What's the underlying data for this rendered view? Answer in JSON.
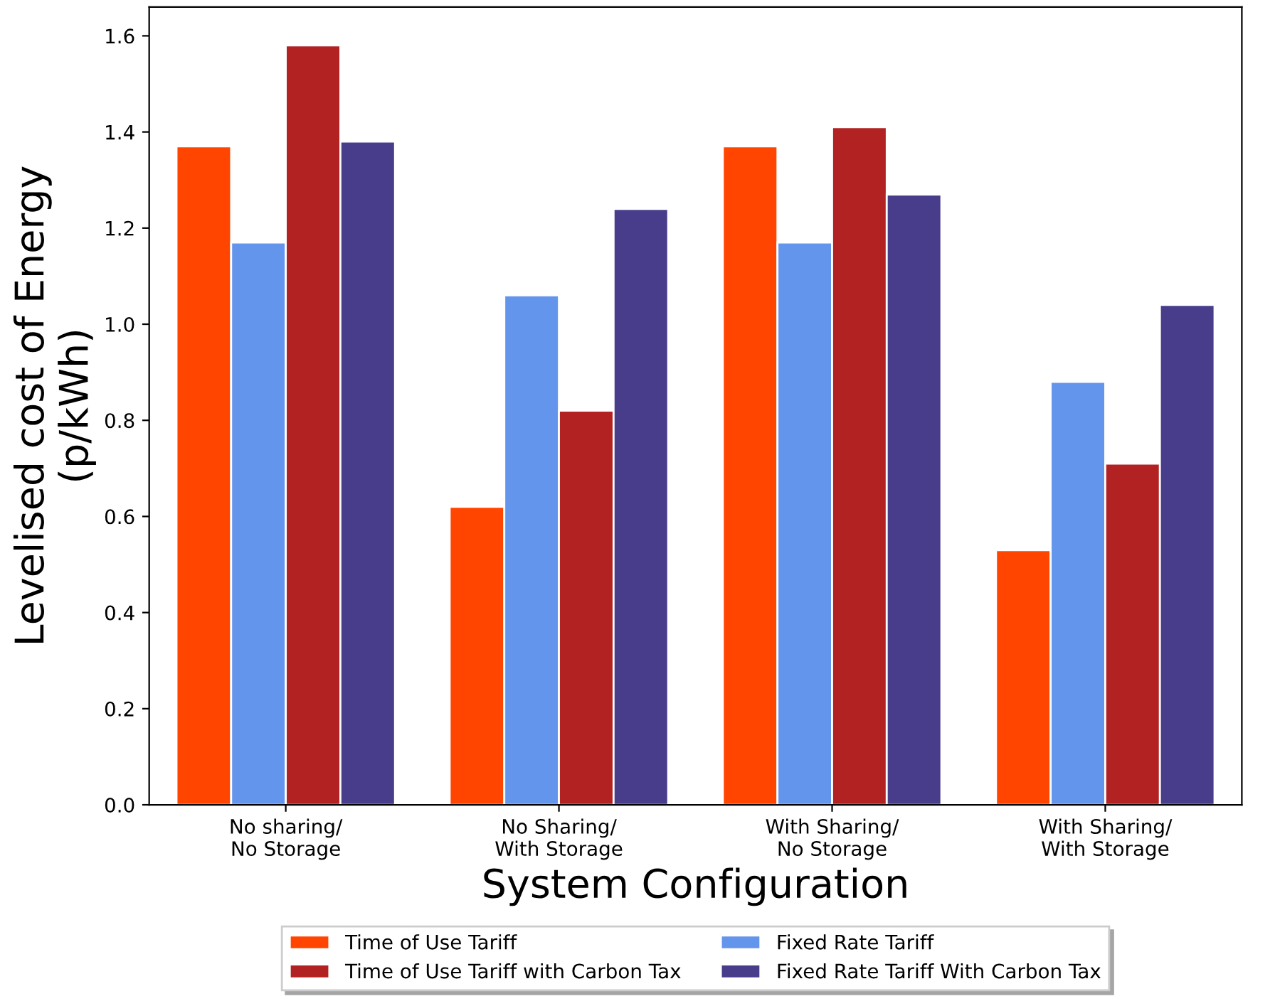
{
  "chart_data": {
    "type": "bar",
    "xlabel": "System Configuration",
    "ylabel": "Levelised cost of Energy\n(p/kWh)",
    "categories": [
      "No sharing/\nNo Storage",
      "No Sharing/\nWith Storage",
      "With Sharing/\nNo Storage",
      "With Sharing/\nWith Storage"
    ],
    "series": [
      {
        "name": "Time of Use Tariff",
        "color": "#ff4500",
        "values": [
          1.37,
          0.62,
          1.37,
          0.53
        ]
      },
      {
        "name": "Fixed Rate Tariff",
        "color": "#6495ed",
        "values": [
          1.17,
          1.06,
          1.17,
          0.88
        ]
      },
      {
        "name": "Time of Use Tariff with Carbon Tax",
        "color": "#b22222",
        "values": [
          1.58,
          0.82,
          1.41,
          0.71
        ]
      },
      {
        "name": "Fixed Rate Tariff With Carbon Tax",
        "color": "#483d8b",
        "values": [
          1.38,
          1.24,
          1.27,
          1.04
        ]
      }
    ],
    "ylim": [
      0,
      1.66
    ],
    "yticks": [
      {
        "value": 0,
        "label": "0.0"
      },
      0.2,
      0.4,
      0.6,
      0.8,
      {
        "value": 1,
        "label": "1.0"
      },
      1.2,
      1.4,
      1.6
    ],
    "grid": false,
    "legend": "bottom"
  }
}
